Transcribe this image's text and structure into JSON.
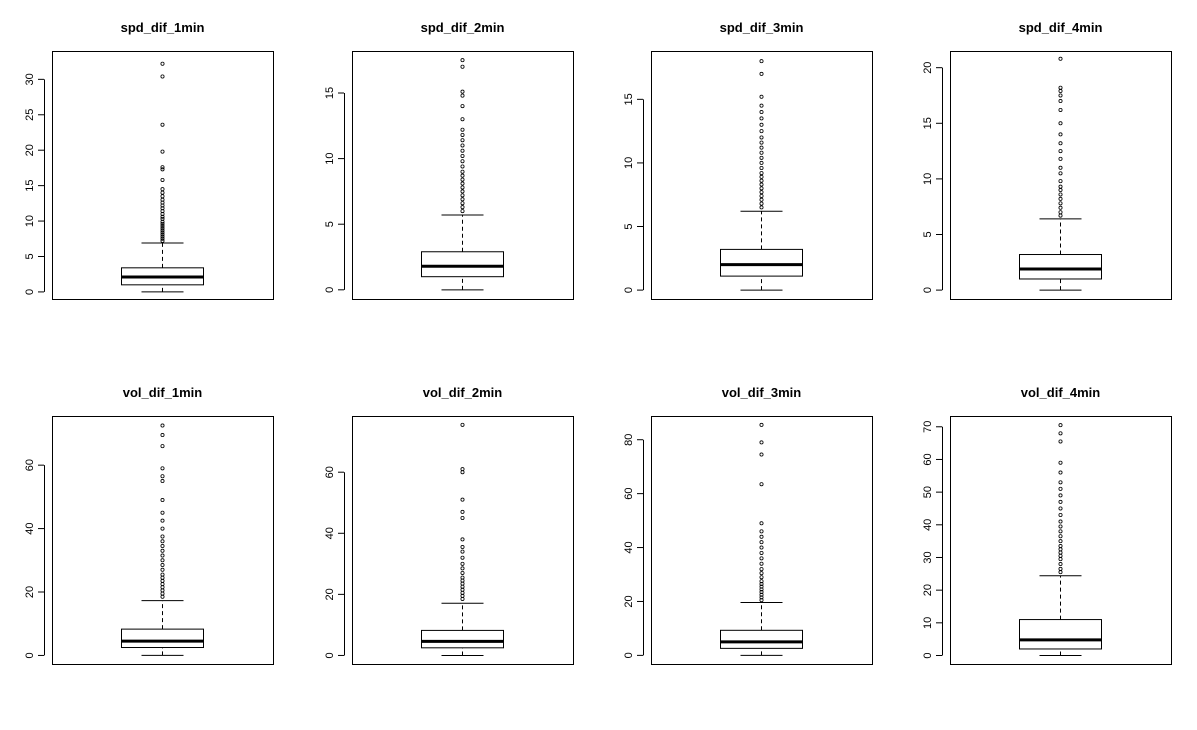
{
  "chart_data": [
    {
      "type": "boxplot",
      "title": "spd_dif_1min",
      "ylim": [
        -1,
        34
      ],
      "yticks": [
        0,
        5,
        10,
        15,
        20,
        25,
        30
      ],
      "box": {
        "min": 0,
        "q1": 1,
        "median": 2.1,
        "q3": 3.4,
        "whisker_high": 6.9
      },
      "outliers": [
        7.2,
        7.5,
        7.8,
        8.1,
        8.4,
        8.7,
        9.0,
        9.3,
        9.6,
        9.9,
        10.3,
        10.6,
        11.0,
        11.4,
        11.8,
        12.2,
        12.6,
        13.0,
        13.5,
        14.0,
        14.5,
        15.8,
        17.3,
        17.6,
        19.8,
        23.6,
        30.4,
        32.2
      ]
    },
    {
      "type": "boxplot",
      "title": "spd_dif_2min",
      "ylim": [
        -0.7,
        18.2
      ],
      "yticks": [
        0,
        5,
        10,
        15
      ],
      "box": {
        "min": 0,
        "q1": 1,
        "median": 1.8,
        "q3": 2.9,
        "whisker_high": 5.7
      },
      "outliers": [
        6.0,
        6.3,
        6.6,
        6.9,
        7.2,
        7.5,
        7.8,
        8.1,
        8.4,
        8.7,
        9.0,
        9.4,
        9.8,
        10.2,
        10.6,
        11.0,
        11.4,
        11.8,
        12.2,
        13.0,
        14.0,
        14.8,
        15.1,
        17.0,
        17.5
      ]
    },
    {
      "type": "boxplot",
      "title": "spd_dif_3min",
      "ylim": [
        -0.7,
        18.8
      ],
      "yticks": [
        0,
        5,
        10,
        15
      ],
      "box": {
        "min": 0,
        "q1": 1.1,
        "median": 2,
        "q3": 3.2,
        "whisker_high": 6.2
      },
      "outliers": [
        6.5,
        6.8,
        7.1,
        7.4,
        7.7,
        8.0,
        8.3,
        8.6,
        8.9,
        9.2,
        9.6,
        10.0,
        10.4,
        10.8,
        11.2,
        11.6,
        12.0,
        12.5,
        13.0,
        13.5,
        14.0,
        14.5,
        15.2,
        17.0,
        18.0
      ]
    },
    {
      "type": "boxplot",
      "title": "spd_dif_4min",
      "ylim": [
        -0.8,
        21.5
      ],
      "yticks": [
        0,
        5,
        10,
        15,
        20
      ],
      "box": {
        "min": 0,
        "q1": 1,
        "median": 1.9,
        "q3": 3.2,
        "whisker_high": 6.4
      },
      "outliers": [
        6.7,
        7.0,
        7.4,
        7.8,
        8.2,
        8.6,
        9.0,
        9.3,
        9.8,
        10.5,
        11.0,
        11.8,
        12.5,
        13.2,
        14.0,
        15.0,
        16.2,
        17.0,
        17.5,
        17.9,
        18.2,
        20.8
      ]
    },
    {
      "type": "boxplot",
      "title": "vol_dif_1min",
      "ylim": [
        -2.7,
        75.5
      ],
      "yticks": [
        0,
        20,
        40,
        60
      ],
      "box": {
        "min": 0,
        "q1": 2.5,
        "median": 4.5,
        "q3": 8.3,
        "whisker_high": 17.3
      },
      "outliers": [
        18.5,
        19.5,
        20.5,
        21.5,
        22.5,
        23.5,
        24.5,
        25.5,
        27.0,
        28.5,
        30.0,
        31.5,
        33.0,
        34.5,
        36.0,
        37.5,
        40.0,
        42.5,
        45.0,
        49.0,
        55.0,
        56.5,
        59.0,
        66.0,
        69.5,
        72.5
      ]
    },
    {
      "type": "boxplot",
      "title": "vol_dif_2min",
      "ylim": [
        -2.8,
        78.4
      ],
      "yticks": [
        0,
        20,
        40,
        60
      ],
      "box": {
        "min": 0,
        "q1": 2.5,
        "median": 4.6,
        "q3": 8.2,
        "whisker_high": 17.1
      },
      "outliers": [
        18.5,
        19.5,
        20.5,
        21.5,
        22.5,
        23.5,
        24.5,
        25.5,
        27.0,
        28.5,
        30.0,
        32.0,
        34.0,
        35.5,
        38.0,
        45.0,
        47.0,
        51.0,
        60.0,
        61.0,
        75.5
      ]
    },
    {
      "type": "boxplot",
      "title": "vol_dif_3min",
      "ylim": [
        -3.2,
        88.8
      ],
      "yticks": [
        0,
        20,
        40,
        60,
        80
      ],
      "box": {
        "min": 0,
        "q1": 2.6,
        "median": 5,
        "q3": 9.3,
        "whisker_high": 19.6
      },
      "outliers": [
        20.5,
        21.5,
        22.5,
        23.5,
        24.5,
        25.5,
        26.5,
        27.5,
        29.0,
        30.5,
        32.0,
        34.0,
        36.0,
        38.0,
        40.0,
        42.0,
        44.0,
        46.0,
        49.0,
        63.5,
        74.5,
        79.0,
        85.5
      ]
    },
    {
      "type": "boxplot",
      "title": "vol_dif_4min",
      "ylim": [
        -2.6,
        73.3
      ],
      "yticks": [
        0,
        10,
        20,
        30,
        40,
        50,
        60,
        70
      ],
      "box": {
        "min": 0,
        "q1": 2,
        "median": 4.8,
        "q3": 11,
        "whisker_high": 24.4
      },
      "outliers": [
        25.5,
        26.5,
        28.0,
        29.5,
        30.5,
        31.5,
        32.5,
        33.5,
        35.0,
        36.5,
        38.0,
        39.5,
        41.0,
        43.0,
        45.0,
        47.0,
        49.0,
        51.0,
        53.0,
        56.0,
        59.0,
        65.5,
        68.0,
        70.5
      ]
    }
  ]
}
